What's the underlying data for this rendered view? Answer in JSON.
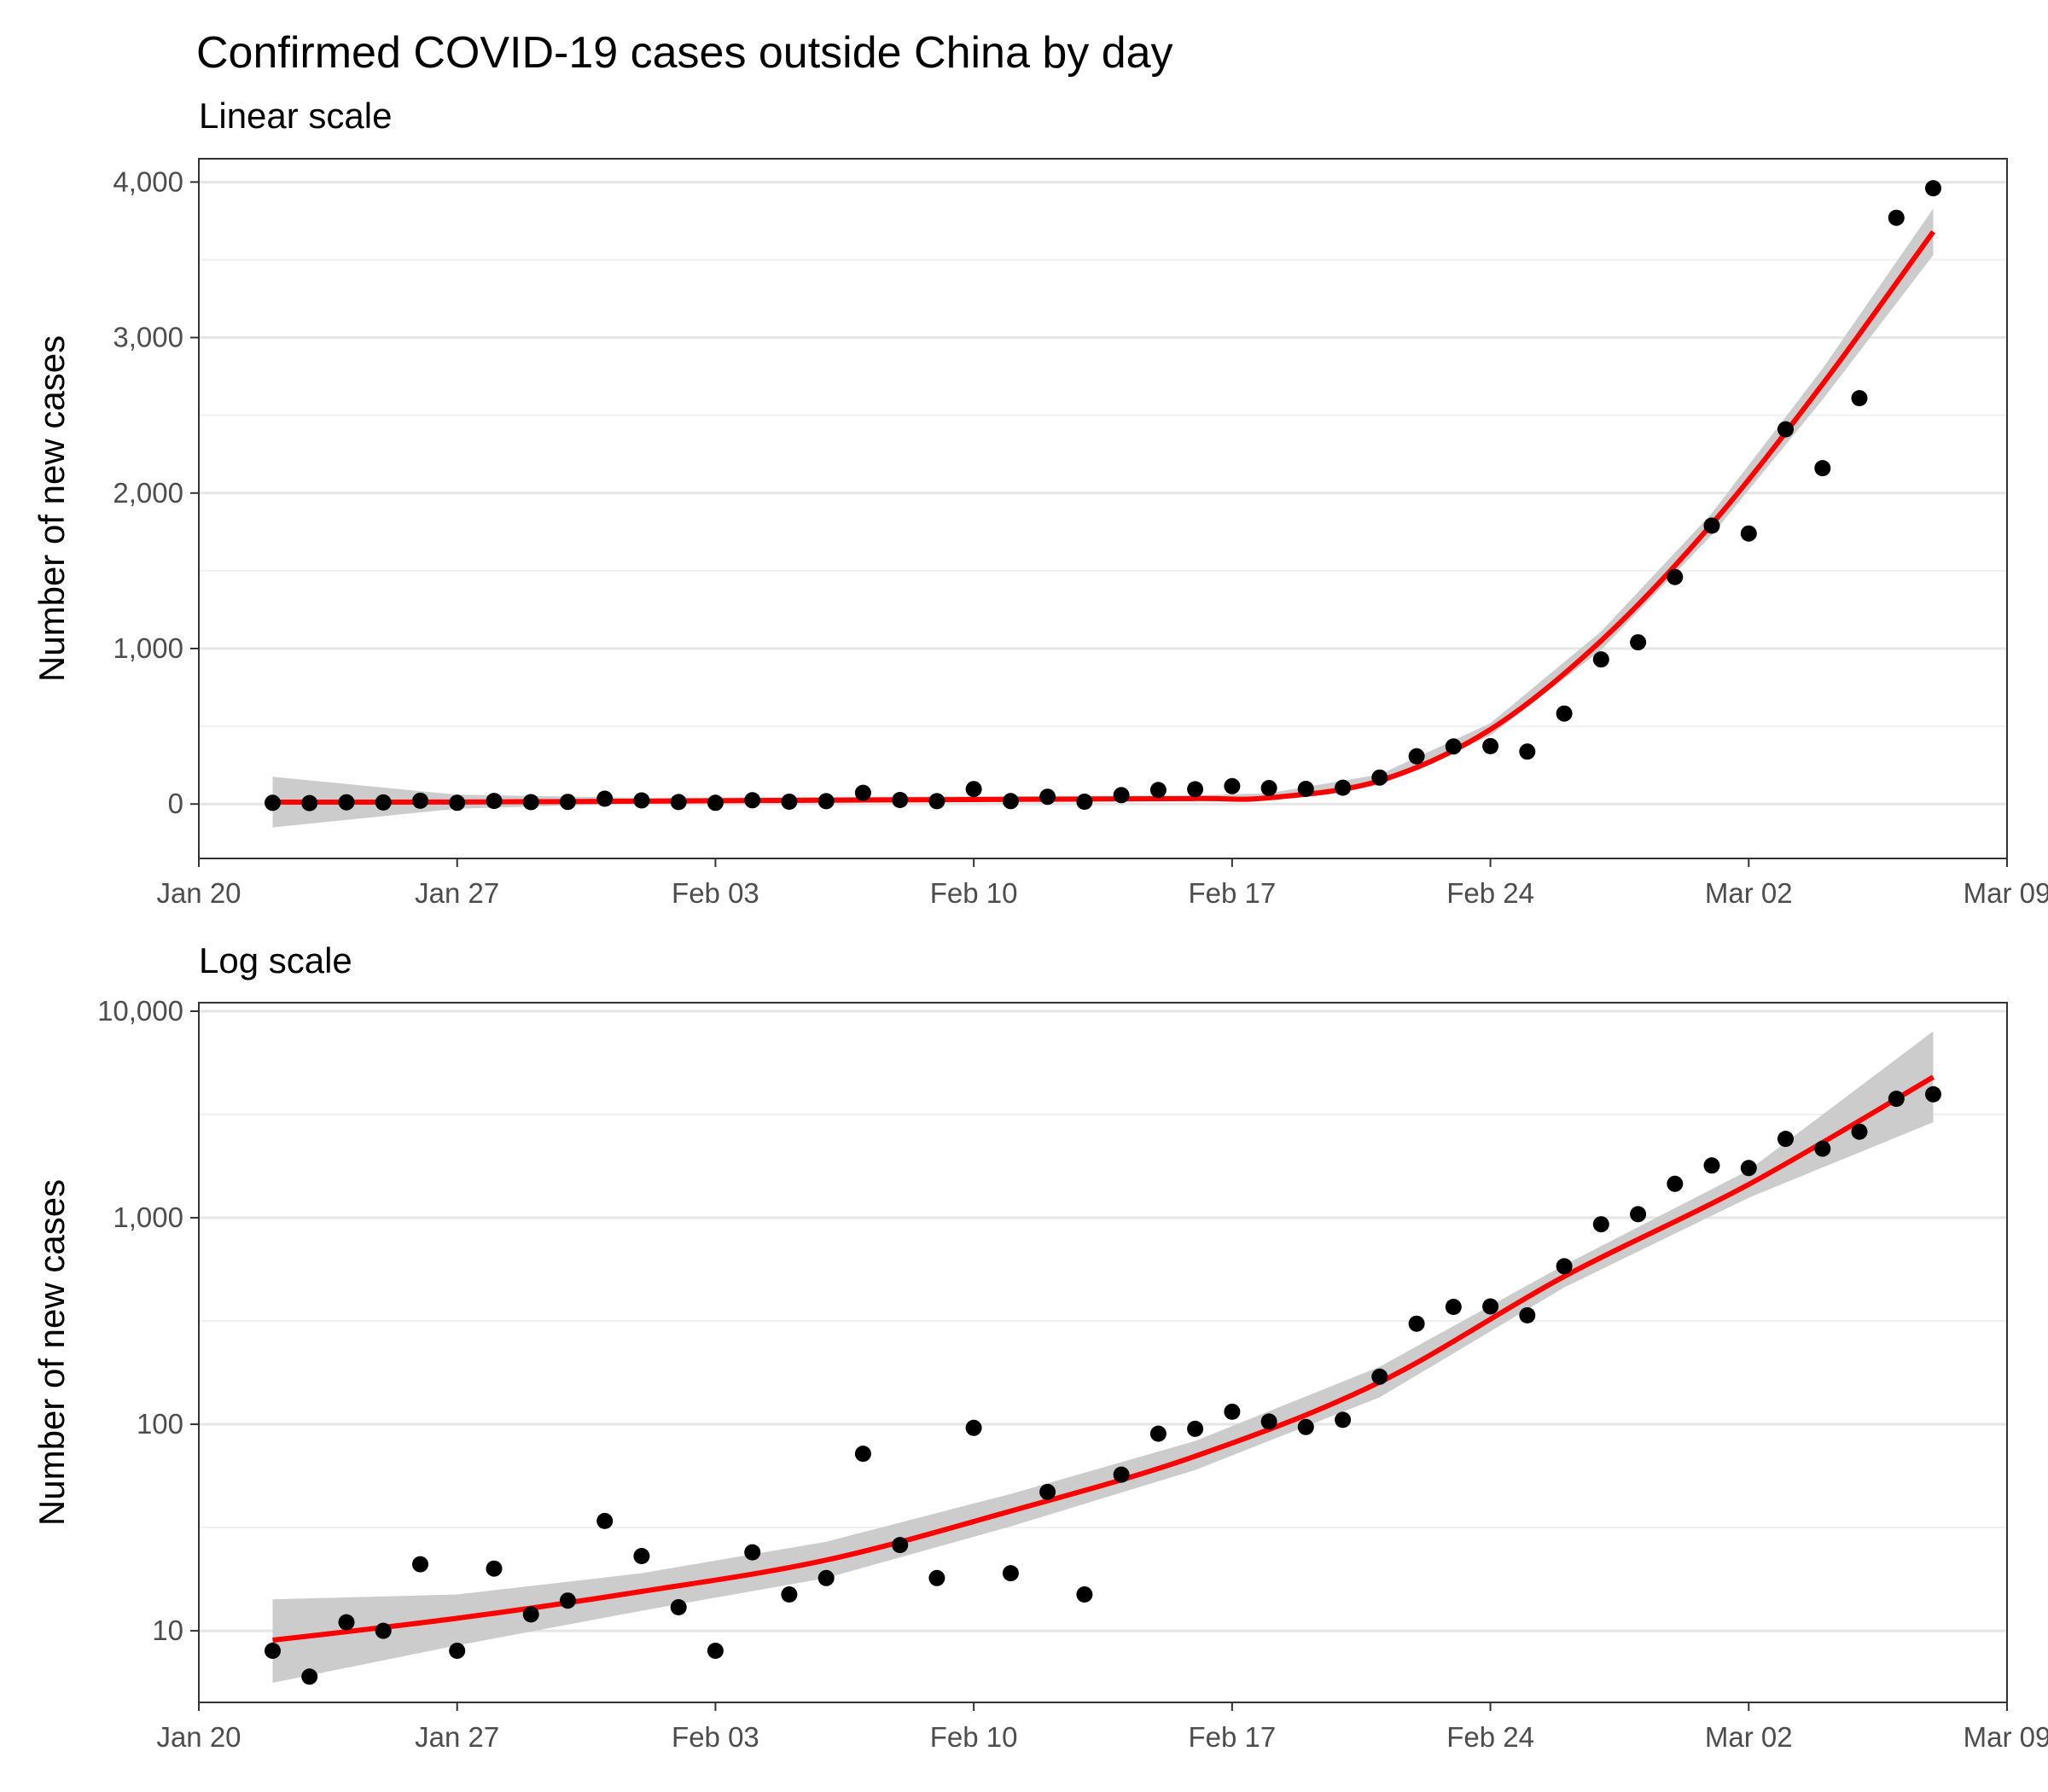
{
  "title": "Confirmed COVID-19 cases outside China by day",
  "colors": {
    "points": "#000000",
    "smooth_line": "#ff0000",
    "confidence_band": "#cccccc",
    "grid": "#e5e5e5",
    "panel_border": "#333333"
  },
  "chart_data": [
    {
      "type": "scatter",
      "subtitle": "Linear scale",
      "ylabel": "Number of new cases",
      "xlabel": "",
      "y_scale": "linear",
      "ylim": [
        -350,
        4150
      ],
      "xlim": [
        "2020-01-20",
        "2020-03-09"
      ],
      "grid": true,
      "x_ticks": [
        "Jan 20",
        "Jan 27",
        "Feb 03",
        "Feb 10",
        "Feb 17",
        "Feb 24",
        "Mar 02",
        "Mar 09"
      ],
      "y_ticks": [
        0,
        1000,
        2000,
        3000,
        4000
      ],
      "y_tick_labels": [
        "0",
        "1,000",
        "2,000",
        "3,000",
        "4,000"
      ],
      "smooth": true,
      "smooth_color": "#ff0000",
      "band_color": "#cccccc"
    },
    {
      "type": "scatter",
      "subtitle": "Log scale",
      "ylabel": "Number of new cases",
      "xlabel": "",
      "y_scale": "log10",
      "ylim": [
        4.5,
        11000
      ],
      "xlim": [
        "2020-01-20",
        "2020-03-09"
      ],
      "grid": true,
      "x_ticks": [
        "Jan 20",
        "Jan 27",
        "Feb 03",
        "Feb 10",
        "Feb 17",
        "Feb 24",
        "Mar 02",
        "Mar 09"
      ],
      "y_ticks": [
        10,
        100,
        1000,
        10000
      ],
      "y_tick_labels": [
        "10",
        "100",
        "1,000",
        "10,000"
      ],
      "smooth": true,
      "smooth_color": "#ff0000",
      "band_color": "#cccccc"
    }
  ],
  "series": {
    "dates": [
      "2020-01-22",
      "2020-01-23",
      "2020-01-24",
      "2020-01-25",
      "2020-01-26",
      "2020-01-27",
      "2020-01-28",
      "2020-01-29",
      "2020-01-30",
      "2020-01-31",
      "2020-02-01",
      "2020-02-02",
      "2020-02-03",
      "2020-02-04",
      "2020-02-05",
      "2020-02-06",
      "2020-02-07",
      "2020-02-08",
      "2020-02-09",
      "2020-02-10",
      "2020-02-11",
      "2020-02-12",
      "2020-02-13",
      "2020-02-14",
      "2020-02-15",
      "2020-02-16",
      "2020-02-17",
      "2020-02-18",
      "2020-02-19",
      "2020-02-20",
      "2020-02-21",
      "2020-02-22",
      "2020-02-23",
      "2020-02-24",
      "2020-02-25",
      "2020-02-26",
      "2020-02-27",
      "2020-02-28",
      "2020-02-29",
      "2020-03-01",
      "2020-03-02",
      "2020-03-03",
      "2020-03-04",
      "2020-03-05",
      "2020-03-06",
      "2020-03-07"
    ],
    "cases": [
      8,
      6,
      11,
      10,
      21,
      8,
      20,
      12,
      14,
      34,
      23,
      13,
      8,
      24,
      15,
      18,
      72,
      26,
      18,
      96,
      19,
      47,
      15,
      57,
      90,
      95,
      115,
      103,
      97,
      105,
      170,
      307,
      370,
      372,
      337,
      582,
      930,
      1040,
      1460,
      1790,
      1740,
      2410,
      2160,
      2610,
      3770,
      3960
    ],
    "smooth_linear": {
      "dates": [
        "2020-01-22",
        "2020-01-27",
        "2020-02-01",
        "2020-02-06",
        "2020-02-11",
        "2020-02-16",
        "2020-02-18",
        "2020-02-21",
        "2020-02-24",
        "2020-02-27",
        "2020-03-01",
        "2020-03-04",
        "2020-03-07"
      ],
      "fit": [
        12,
        13,
        18,
        25,
        30,
        35,
        40,
        150,
        480,
        1050,
        1800,
        2700,
        3680
      ],
      "lower": [
        -150,
        -30,
        5,
        12,
        15,
        20,
        25,
        120,
        440,
        990,
        1730,
        2600,
        3530
      ],
      "upper": [
        175,
        60,
        40,
        45,
        50,
        55,
        70,
        190,
        520,
        1110,
        1870,
        2800,
        3830
      ]
    },
    "smooth_log": {
      "dates": [
        "2020-01-22",
        "2020-01-27",
        "2020-02-01",
        "2020-02-06",
        "2020-02-11",
        "2020-02-16",
        "2020-02-21",
        "2020-02-26",
        "2020-03-02",
        "2020-03-07"
      ],
      "fit": [
        9,
        11.5,
        15.5,
        22,
        38,
        70,
        160,
        520,
        1450,
        4800
      ],
      "lower": [
        5.6,
        8.5,
        12.5,
        18,
        32,
        60,
        135,
        460,
        1250,
        2900
      ],
      "upper": [
        14.2,
        15,
        19,
        27,
        46,
        83,
        190,
        590,
        1700,
        8000
      ]
    }
  }
}
